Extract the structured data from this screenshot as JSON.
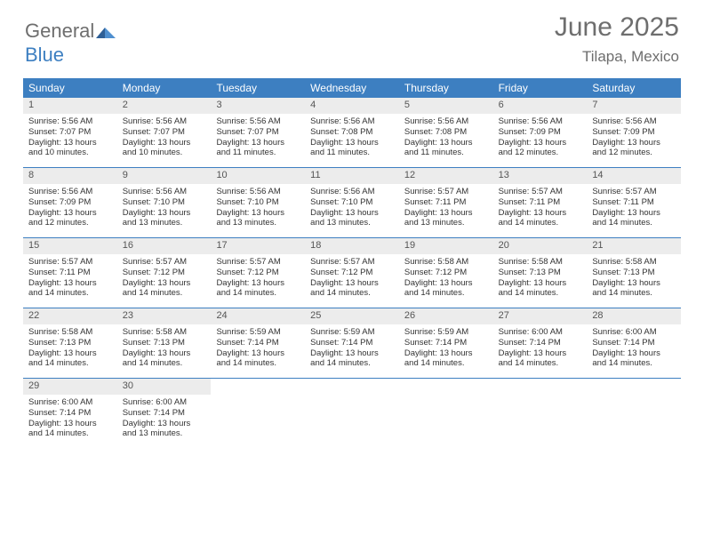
{
  "brand": {
    "part1": "General",
    "part2": "Blue"
  },
  "title": "June 2025",
  "location": "Tilapa, Mexico",
  "colors": {
    "header_bg": "#3d7fc1",
    "daynum_bg": "#ececec",
    "text": "#333333",
    "muted": "#6e6e6e",
    "row_border": "#3d7fc1"
  },
  "day_labels": [
    "Sunday",
    "Monday",
    "Tuesday",
    "Wednesday",
    "Thursday",
    "Friday",
    "Saturday"
  ],
  "weeks": [
    [
      {
        "n": "1",
        "sr": "5:56 AM",
        "ss": "7:07 PM",
        "dl": "13 hours and 10 minutes."
      },
      {
        "n": "2",
        "sr": "5:56 AM",
        "ss": "7:07 PM",
        "dl": "13 hours and 10 minutes."
      },
      {
        "n": "3",
        "sr": "5:56 AM",
        "ss": "7:07 PM",
        "dl": "13 hours and 11 minutes."
      },
      {
        "n": "4",
        "sr": "5:56 AM",
        "ss": "7:08 PM",
        "dl": "13 hours and 11 minutes."
      },
      {
        "n": "5",
        "sr": "5:56 AM",
        "ss": "7:08 PM",
        "dl": "13 hours and 11 minutes."
      },
      {
        "n": "6",
        "sr": "5:56 AM",
        "ss": "7:09 PM",
        "dl": "13 hours and 12 minutes."
      },
      {
        "n": "7",
        "sr": "5:56 AM",
        "ss": "7:09 PM",
        "dl": "13 hours and 12 minutes."
      }
    ],
    [
      {
        "n": "8",
        "sr": "5:56 AM",
        "ss": "7:09 PM",
        "dl": "13 hours and 12 minutes."
      },
      {
        "n": "9",
        "sr": "5:56 AM",
        "ss": "7:10 PM",
        "dl": "13 hours and 13 minutes."
      },
      {
        "n": "10",
        "sr": "5:56 AM",
        "ss": "7:10 PM",
        "dl": "13 hours and 13 minutes."
      },
      {
        "n": "11",
        "sr": "5:56 AM",
        "ss": "7:10 PM",
        "dl": "13 hours and 13 minutes."
      },
      {
        "n": "12",
        "sr": "5:57 AM",
        "ss": "7:11 PM",
        "dl": "13 hours and 13 minutes."
      },
      {
        "n": "13",
        "sr": "5:57 AM",
        "ss": "7:11 PM",
        "dl": "13 hours and 14 minutes."
      },
      {
        "n": "14",
        "sr": "5:57 AM",
        "ss": "7:11 PM",
        "dl": "13 hours and 14 minutes."
      }
    ],
    [
      {
        "n": "15",
        "sr": "5:57 AM",
        "ss": "7:11 PM",
        "dl": "13 hours and 14 minutes."
      },
      {
        "n": "16",
        "sr": "5:57 AM",
        "ss": "7:12 PM",
        "dl": "13 hours and 14 minutes."
      },
      {
        "n": "17",
        "sr": "5:57 AM",
        "ss": "7:12 PM",
        "dl": "13 hours and 14 minutes."
      },
      {
        "n": "18",
        "sr": "5:57 AM",
        "ss": "7:12 PM",
        "dl": "13 hours and 14 minutes."
      },
      {
        "n": "19",
        "sr": "5:58 AM",
        "ss": "7:12 PM",
        "dl": "13 hours and 14 minutes."
      },
      {
        "n": "20",
        "sr": "5:58 AM",
        "ss": "7:13 PM",
        "dl": "13 hours and 14 minutes."
      },
      {
        "n": "21",
        "sr": "5:58 AM",
        "ss": "7:13 PM",
        "dl": "13 hours and 14 minutes."
      }
    ],
    [
      {
        "n": "22",
        "sr": "5:58 AM",
        "ss": "7:13 PM",
        "dl": "13 hours and 14 minutes."
      },
      {
        "n": "23",
        "sr": "5:58 AM",
        "ss": "7:13 PM",
        "dl": "13 hours and 14 minutes."
      },
      {
        "n": "24",
        "sr": "5:59 AM",
        "ss": "7:14 PM",
        "dl": "13 hours and 14 minutes."
      },
      {
        "n": "25",
        "sr": "5:59 AM",
        "ss": "7:14 PM",
        "dl": "13 hours and 14 minutes."
      },
      {
        "n": "26",
        "sr": "5:59 AM",
        "ss": "7:14 PM",
        "dl": "13 hours and 14 minutes."
      },
      {
        "n": "27",
        "sr": "6:00 AM",
        "ss": "7:14 PM",
        "dl": "13 hours and 14 minutes."
      },
      {
        "n": "28",
        "sr": "6:00 AM",
        "ss": "7:14 PM",
        "dl": "13 hours and 14 minutes."
      }
    ],
    [
      {
        "n": "29",
        "sr": "6:00 AM",
        "ss": "7:14 PM",
        "dl": "13 hours and 14 minutes."
      },
      {
        "n": "30",
        "sr": "6:00 AM",
        "ss": "7:14 PM",
        "dl": "13 hours and 13 minutes."
      },
      null,
      null,
      null,
      null,
      null
    ]
  ],
  "labels": {
    "sunrise": "Sunrise:",
    "sunset": "Sunset:",
    "daylight": "Daylight:"
  }
}
